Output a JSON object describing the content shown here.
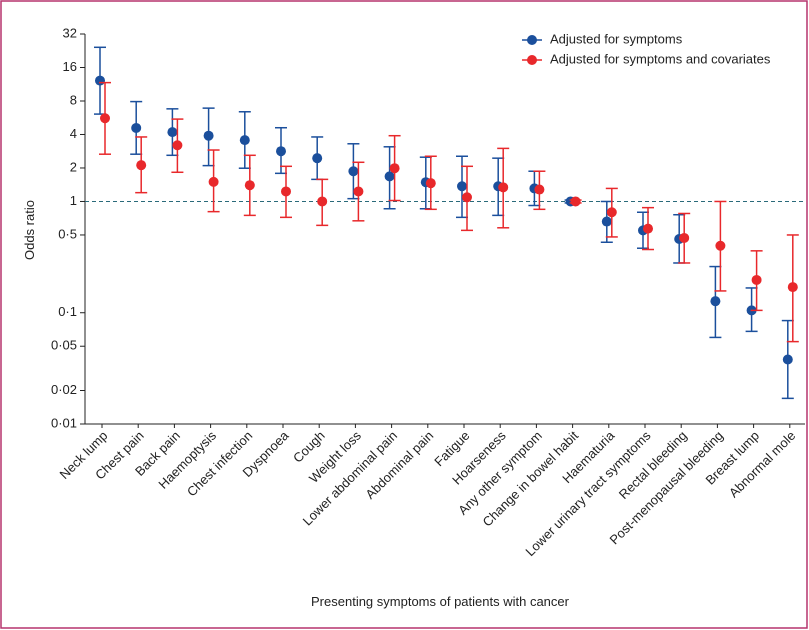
{
  "chart_data": {
    "type": "errorbar",
    "y_label": "Odds ratio",
    "x_label": "Presenting symptoms of patients with cancer",
    "y_scale": "log",
    "ylim": [
      0.01,
      32
    ],
    "yticks": [
      {
        "value": 0.01,
        "label": "0·01"
      },
      {
        "value": 0.02,
        "label": "0·02"
      },
      {
        "value": 0.05,
        "label": "0·05"
      },
      {
        "value": 0.1,
        "label": "0·1"
      },
      {
        "value": 0.5,
        "label": "0·5"
      },
      1,
      2,
      4,
      8,
      16,
      32
    ],
    "reference_line": 1,
    "legend_position": "top-right",
    "categories": [
      "Neck lump",
      "Chest pain",
      "Back pain",
      "Haemoptysis",
      "Chest infection",
      "Dyspnoea",
      "Cough",
      "Weight loss",
      "Lower abdominal pain",
      "Abdominal pain",
      "Fatigue",
      "Hoarseness",
      "Any other symptom",
      "Change in bowel habit",
      "Haematuria",
      "Lower urinary tract symptoms",
      "Rectal bleeding",
      "Post-menopausal bleeding",
      "Breast lump",
      "Abnormal mole"
    ],
    "series": [
      {
        "name": "Adjusted for symptoms",
        "color": "#1b4f9c",
        "values": [
          12.2,
          4.58,
          4.2,
          3.9,
          3.56,
          2.83,
          2.45,
          1.87,
          1.68,
          1.49,
          1.37,
          1.37,
          1.31,
          1.0,
          0.66,
          0.55,
          0.46,
          0.127,
          0.105,
          0.038
        ],
        "lower": [
          6.1,
          2.66,
          2.6,
          2.1,
          1.99,
          1.79,
          1.58,
          1.06,
          0.86,
          0.86,
          0.72,
          0.75,
          0.92,
          0.97,
          0.43,
          0.38,
          0.28,
          0.06,
          0.068,
          0.017
        ],
        "upper": [
          24.3,
          7.9,
          6.8,
          6.9,
          6.4,
          4.6,
          3.8,
          3.3,
          3.1,
          2.5,
          2.55,
          2.45,
          1.87,
          1.03,
          1.0,
          0.8,
          0.76,
          0.26,
          0.167,
          0.085
        ]
      },
      {
        "name": "Adjusted for symptoms and covariates",
        "color": "#e8282b",
        "values": [
          5.6,
          2.12,
          3.2,
          1.5,
          1.4,
          1.23,
          1.0,
          1.23,
          1.99,
          1.46,
          1.09,
          1.34,
          1.28,
          1.0,
          0.8,
          0.57,
          0.47,
          0.4,
          0.197,
          0.17
        ],
        "lower": [
          2.66,
          1.2,
          1.83,
          0.81,
          0.75,
          0.72,
          0.61,
          0.67,
          1.02,
          0.85,
          0.55,
          0.58,
          0.85,
          0.97,
          0.48,
          0.37,
          0.28,
          0.157,
          0.105,
          0.055
        ],
        "upper": [
          11.7,
          3.8,
          5.5,
          2.9,
          2.6,
          2.07,
          1.58,
          2.25,
          3.9,
          2.55,
          2.07,
          3.0,
          1.87,
          1.03,
          1.31,
          0.88,
          0.78,
          1.0,
          0.36,
          0.5
        ]
      }
    ]
  }
}
